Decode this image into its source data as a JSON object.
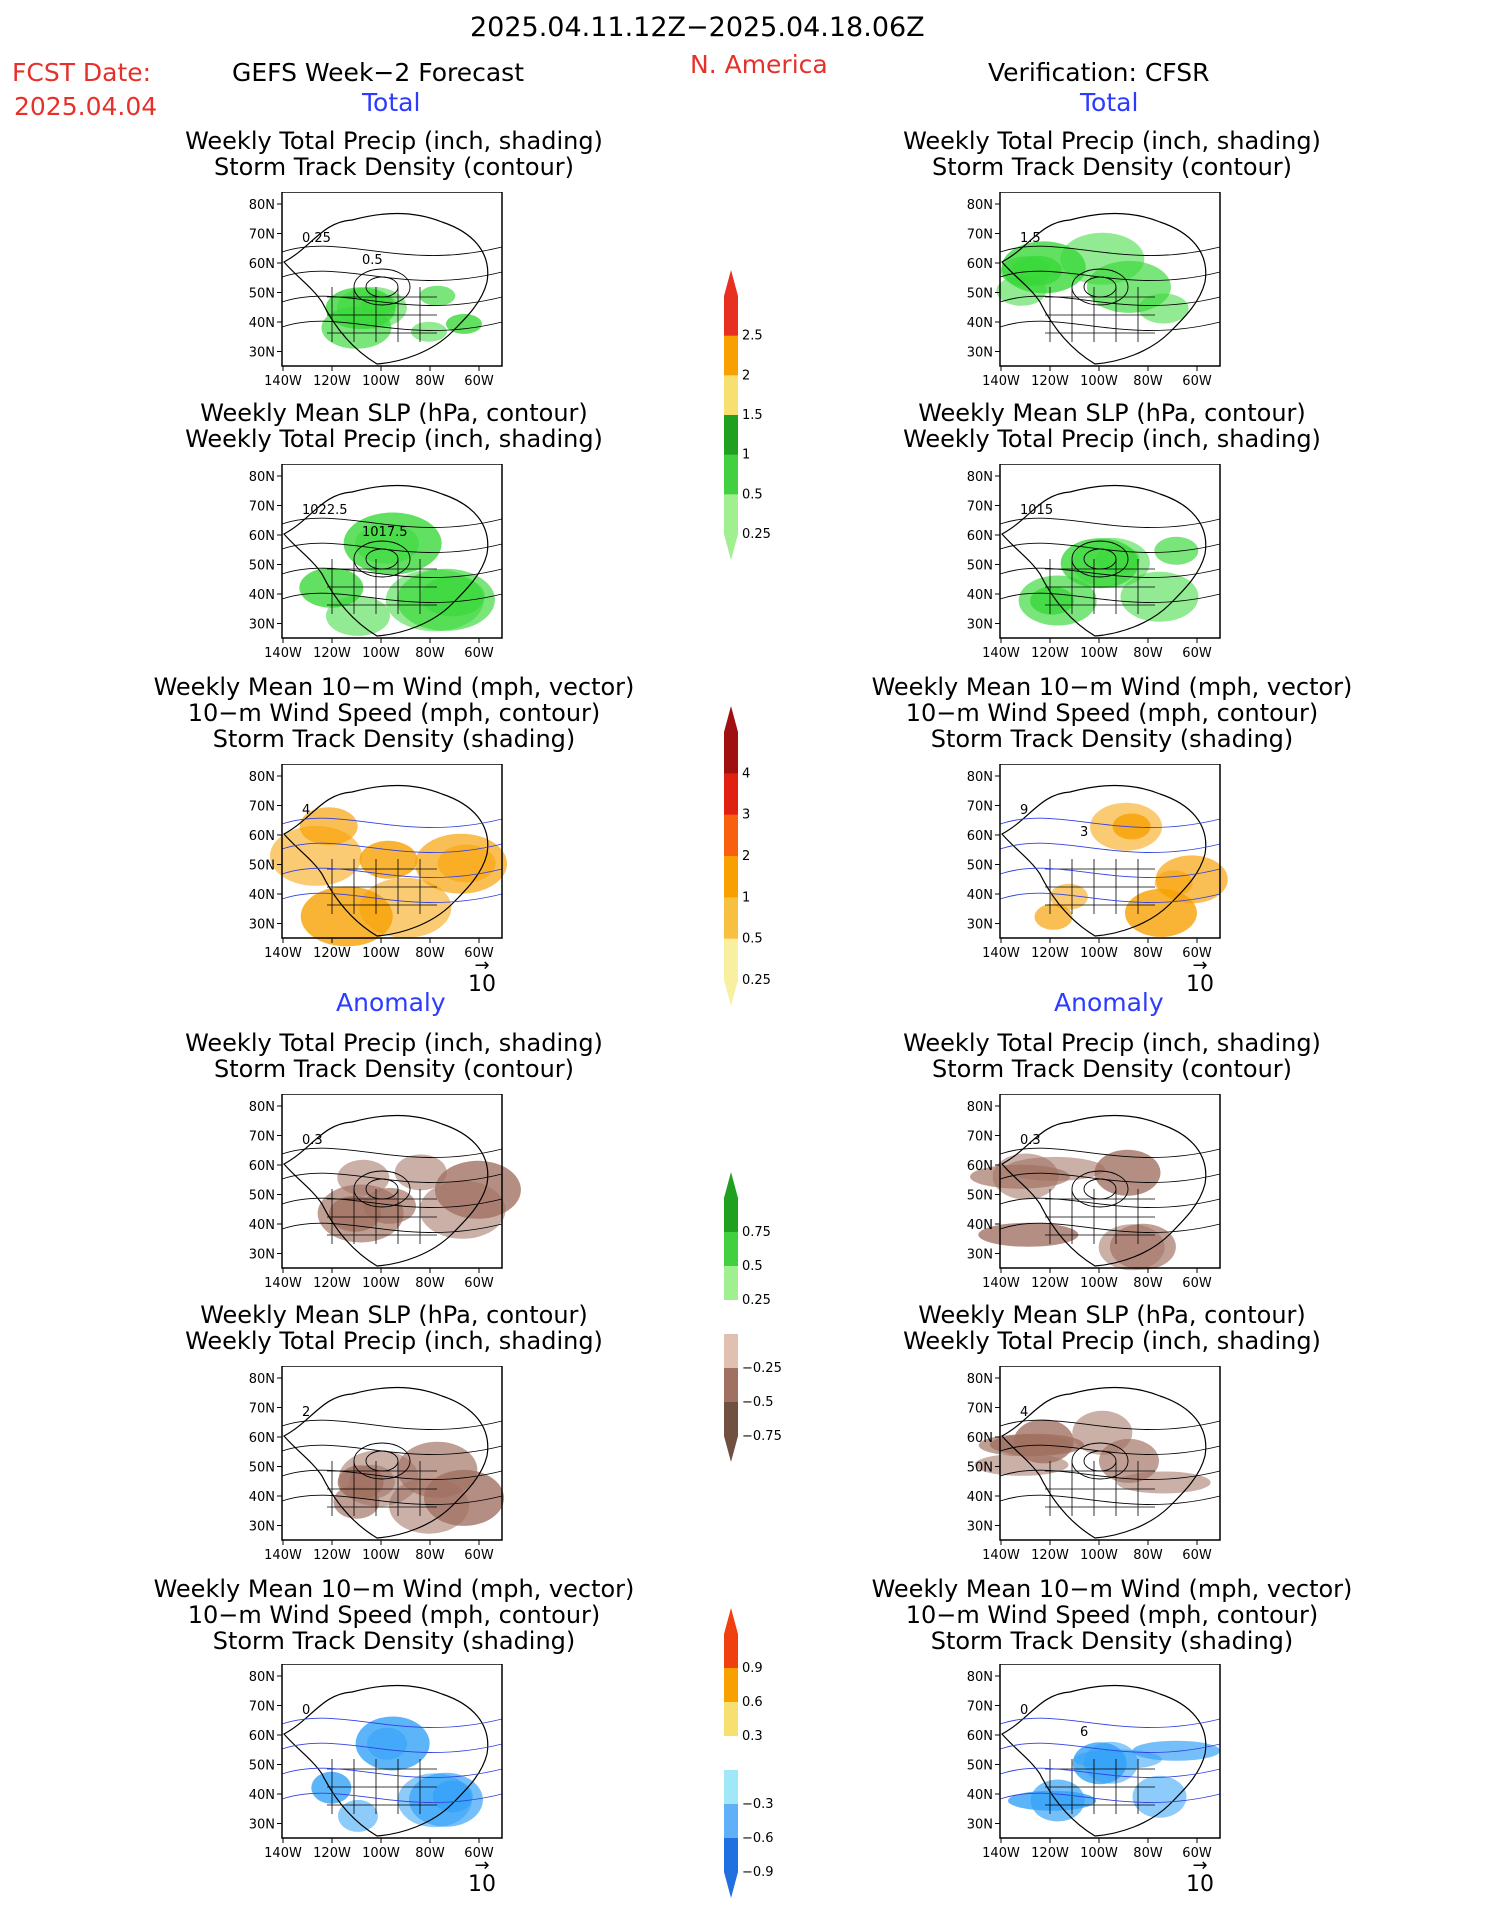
{
  "header": {
    "period": "2025.04.11.12Z−2025.04.18.06Z",
    "fcst_label": "FCST Date:",
    "fcst_date": "2025.04.04",
    "left_title": "GEFS Week−2 Forecast",
    "region": "N. America",
    "right_title": "Verification: CFSR"
  },
  "sections": {
    "total": "Total",
    "anomaly": "Anomaly"
  },
  "panel_titles": {
    "precip": [
      "Weekly Total Precip (inch, shading)",
      "Storm Track Density (contour)"
    ],
    "slp": [
      "Weekly Mean SLP (hPa, contour)",
      "Weekly Total Precip (inch, shading)"
    ],
    "wind": [
      "Weekly Mean 10−m Wind (mph, vector)",
      "10−m Wind Speed (mph, contour)",
      "Storm Track Density (shading)"
    ]
  },
  "axes": {
    "lat": [
      "80N",
      "70N",
      "60N",
      "50N",
      "40N",
      "30N"
    ],
    "lon": [
      "140W",
      "120W",
      "100W",
      "80W",
      "60W"
    ]
  },
  "vector_ref": "10",
  "panels": [
    {
      "id": "fcst-total-precip",
      "kind": "precip",
      "row": 0,
      "col": 0,
      "fill": "#38d838",
      "labels": [
        "0.25",
        "0.5"
      ]
    },
    {
      "id": "obs-total-precip",
      "kind": "precip",
      "row": 0,
      "col": 1,
      "fill": "#38d838",
      "labels": [
        "1.5"
      ]
    },
    {
      "id": "fcst-total-slp",
      "kind": "slp",
      "row": 1,
      "col": 0,
      "fill": "#38d838",
      "labels": [
        "1022.5",
        "1017.5"
      ]
    },
    {
      "id": "obs-total-slp",
      "kind": "slp",
      "row": 1,
      "col": 1,
      "fill": "#38d838",
      "labels": [
        "1015"
      ]
    },
    {
      "id": "fcst-total-wind",
      "kind": "wind",
      "row": 2,
      "col": 0,
      "fill": "#f8a000",
      "labels": [
        "4"
      ]
    },
    {
      "id": "obs-total-wind",
      "kind": "wind",
      "row": 2,
      "col": 1,
      "fill": "#f8a000",
      "labels": [
        "9",
        "3"
      ]
    },
    {
      "id": "fcst-anom-precip",
      "kind": "precip",
      "row": 3,
      "col": 0,
      "fill": "#a07060",
      "labels": [
        "0.3"
      ]
    },
    {
      "id": "obs-anom-precip",
      "kind": "precip",
      "row": 3,
      "col": 1,
      "fill": "#a07060",
      "labels": [
        "0.3"
      ]
    },
    {
      "id": "fcst-anom-slp",
      "kind": "slp",
      "row": 4,
      "col": 0,
      "fill": "#a07060",
      "labels": [
        "2"
      ]
    },
    {
      "id": "obs-anom-slp",
      "kind": "slp",
      "row": 4,
      "col": 1,
      "fill": "#a07060",
      "labels": [
        "4"
      ]
    },
    {
      "id": "fcst-anom-wind",
      "kind": "wind",
      "row": 5,
      "col": 0,
      "fill": "#30a0f8",
      "labels": [
        "0"
      ]
    },
    {
      "id": "obs-anom-wind",
      "kind": "wind",
      "row": 5,
      "col": 1,
      "fill": "#30a0f8",
      "labels": [
        "0",
        "6"
      ]
    }
  ],
  "colorbars": [
    {
      "id": "precip-total",
      "labels": [
        "2.5",
        "2",
        "1.5",
        "1",
        "0.5",
        "0.25"
      ],
      "colors": [
        "#e83020",
        "#f8a000",
        "#f8e070",
        "#20a020",
        "#40d040",
        "#a0f090"
      ]
    },
    {
      "id": "std-total",
      "labels": [
        "4",
        "3",
        "2",
        "1",
        "0.5",
        "0.25"
      ],
      "colors": [
        "#a01010",
        "#e02010",
        "#f86010",
        "#f8a000",
        "#f8c040",
        "#f8f0a0"
      ]
    },
    {
      "id": "precip-anom",
      "labels": [
        "0.75",
        "0.5",
        "0.25",
        "−0.25",
        "−0.5",
        "−0.75"
      ],
      "colors": [
        "#20a020",
        "#40d040",
        "#a0f090",
        "#ffffff",
        "#e0c0b0",
        "#a07060",
        "#705040"
      ]
    },
    {
      "id": "std-anom",
      "labels": [
        "0.9",
        "0.6",
        "0.3",
        "−0.3",
        "−0.6",
        "−0.9"
      ],
      "colors": [
        "#f04010",
        "#f8a000",
        "#f8e070",
        "#ffffff",
        "#a0e8f8",
        "#60b0f8",
        "#2070e0"
      ]
    }
  ]
}
